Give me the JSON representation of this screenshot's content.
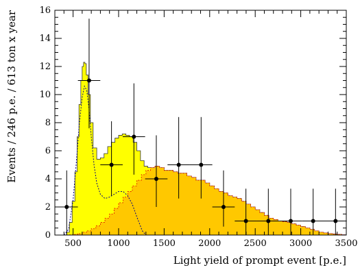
{
  "chart_data": {
    "type": "histogram",
    "title": "",
    "xlabel": "Light yield of prompt event [p.e.]",
    "ylabel": "Events / 246 p.e. / 613 ton x year",
    "xlim": [
      300,
      3500
    ],
    "ylim": [
      0,
      16
    ],
    "x_tick_labels": [
      "500",
      "1000",
      "1500",
      "2000",
      "2500",
      "3000",
      "3500"
    ],
    "y_tick_labels": [
      "0",
      "2",
      "4",
      "6",
      "8",
      "10",
      "12",
      "14",
      "16"
    ],
    "x_ticks": [
      500,
      1000,
      1500,
      2000,
      2500,
      3000,
      3500
    ],
    "y_ticks": [
      0,
      2,
      4,
      6,
      8,
      10,
      12,
      14,
      16
    ],
    "grid": false,
    "series": [
      {
        "kind": "total-fill",
        "color": "#ffff00",
        "points": [
          [
            400,
            0
          ],
          [
            430,
            0.2
          ],
          [
            460,
            0.9
          ],
          [
            490,
            2.4
          ],
          [
            520,
            4.5
          ],
          [
            545,
            7.0
          ],
          [
            565,
            9.3
          ],
          [
            585,
            11.0
          ],
          [
            600,
            12.0
          ],
          [
            615,
            12.3
          ],
          [
            630,
            12.2
          ],
          [
            645,
            11.4
          ],
          [
            665,
            10.0
          ],
          [
            690,
            8.0
          ],
          [
            720,
            6.2
          ],
          [
            760,
            5.4
          ],
          [
            800,
            5.5
          ],
          [
            840,
            5.8
          ],
          [
            880,
            6.3
          ],
          [
            920,
            6.6
          ],
          [
            960,
            6.9
          ],
          [
            1000,
            7.1
          ],
          [
            1040,
            7.2
          ],
          [
            1080,
            7.1
          ],
          [
            1120,
            7.0
          ],
          [
            1160,
            6.6
          ],
          [
            1200,
            6.0
          ],
          [
            1240,
            5.3
          ],
          [
            1280,
            4.9
          ],
          [
            1320,
            4.8
          ],
          [
            1360,
            4.8
          ],
          [
            1400,
            4.9
          ],
          [
            1450,
            4.8
          ],
          [
            1500,
            4.6
          ],
          [
            1550,
            4.6
          ],
          [
            1600,
            4.5
          ],
          [
            1650,
            4.4
          ],
          [
            1700,
            4.4
          ],
          [
            1750,
            4.2
          ],
          [
            1800,
            4.1
          ],
          [
            1850,
            3.9
          ],
          [
            1900,
            3.9
          ],
          [
            1950,
            3.7
          ],
          [
            2000,
            3.5
          ],
          [
            2050,
            3.3
          ],
          [
            2100,
            3.1
          ],
          [
            2150,
            3.0
          ],
          [
            2200,
            2.8
          ],
          [
            2250,
            2.7
          ],
          [
            2300,
            2.6
          ],
          [
            2350,
            2.4
          ],
          [
            2400,
            2.2
          ],
          [
            2450,
            2.0
          ],
          [
            2500,
            1.8
          ],
          [
            2550,
            1.6
          ],
          [
            2600,
            1.4
          ],
          [
            2650,
            1.2
          ],
          [
            2700,
            1.1
          ],
          [
            2750,
            1.0
          ],
          [
            2800,
            0.95
          ],
          [
            2850,
            0.9
          ],
          [
            2900,
            0.8
          ],
          [
            2950,
            0.7
          ],
          [
            3000,
            0.6
          ],
          [
            3050,
            0.5
          ],
          [
            3100,
            0.4
          ],
          [
            3150,
            0.3
          ],
          [
            3200,
            0.2
          ],
          [
            3250,
            0.15
          ],
          [
            3300,
            0.1
          ],
          [
            3350,
            0.07
          ],
          [
            3400,
            0.05
          ],
          [
            3450,
            0.02
          ],
          [
            3500,
            0
          ]
        ]
      },
      {
        "kind": "component-fill",
        "color": "#ffc800",
        "points": [
          [
            400,
            0
          ],
          [
            450,
            0.02
          ],
          [
            500,
            0.05
          ],
          [
            550,
            0.1
          ],
          [
            600,
            0.2
          ],
          [
            650,
            0.3
          ],
          [
            700,
            0.45
          ],
          [
            750,
            0.65
          ],
          [
            800,
            0.9
          ],
          [
            850,
            1.2
          ],
          [
            900,
            1.5
          ],
          [
            950,
            1.9
          ],
          [
            1000,
            2.3
          ],
          [
            1050,
            2.7
          ],
          [
            1100,
            3.1
          ],
          [
            1150,
            3.5
          ],
          [
            1200,
            3.9
          ],
          [
            1250,
            4.3
          ],
          [
            1300,
            4.6
          ],
          [
            1350,
            4.8
          ],
          [
            1400,
            4.9
          ],
          [
            1450,
            4.8
          ],
          [
            1500,
            4.6
          ],
          [
            1550,
            4.6
          ],
          [
            1600,
            4.5
          ],
          [
            1650,
            4.4
          ],
          [
            1700,
            4.4
          ],
          [
            1750,
            4.2
          ],
          [
            1800,
            4.1
          ],
          [
            1850,
            3.9
          ],
          [
            1900,
            3.9
          ],
          [
            1950,
            3.7
          ],
          [
            2000,
            3.5
          ],
          [
            2050,
            3.3
          ],
          [
            2100,
            3.1
          ],
          [
            2150,
            3.0
          ],
          [
            2200,
            2.8
          ],
          [
            2250,
            2.7
          ],
          [
            2300,
            2.6
          ],
          [
            2350,
            2.4
          ],
          [
            2400,
            2.2
          ],
          [
            2450,
            2.0
          ],
          [
            2500,
            1.8
          ],
          [
            2550,
            1.6
          ],
          [
            2600,
            1.4
          ],
          [
            2650,
            1.2
          ],
          [
            2700,
            1.1
          ],
          [
            2750,
            1.0
          ],
          [
            2800,
            0.95
          ],
          [
            2850,
            0.9
          ],
          [
            2900,
            0.8
          ],
          [
            2950,
            0.7
          ],
          [
            3000,
            0.6
          ],
          [
            3050,
            0.5
          ],
          [
            3100,
            0.4
          ],
          [
            3150,
            0.3
          ],
          [
            3200,
            0.2
          ],
          [
            3250,
            0.15
          ],
          [
            3300,
            0.1
          ],
          [
            3350,
            0.07
          ],
          [
            3400,
            0.05
          ],
          [
            3450,
            0.02
          ],
          [
            3500,
            0
          ]
        ]
      },
      {
        "kind": "dashed-line",
        "color": "#000080",
        "points": [
          [
            400,
            0
          ],
          [
            450,
            0.4
          ],
          [
            500,
            2.5
          ],
          [
            540,
            5.5
          ],
          [
            570,
            8.0
          ],
          [
            600,
            9.8
          ],
          [
            625,
            10.6
          ],
          [
            650,
            10.3
          ],
          [
            675,
            9.0
          ],
          [
            700,
            7.0
          ],
          [
            730,
            5.0
          ],
          [
            760,
            3.7
          ],
          [
            800,
            2.9
          ],
          [
            850,
            2.6
          ],
          [
            900,
            2.7
          ],
          [
            950,
            2.9
          ],
          [
            1000,
            3.1
          ],
          [
            1050,
            3.1
          ],
          [
            1100,
            2.8
          ],
          [
            1150,
            2.2
          ],
          [
            1200,
            1.3
          ],
          [
            1230,
            0.8
          ],
          [
            1260,
            0.3
          ],
          [
            1300,
            0
          ]
        ]
      }
    ],
    "data_points": [
      {
        "x": 430,
        "y": 2,
        "x_err": 123,
        "y_low": 0,
        "y_high": 4.6
      },
      {
        "x": 676,
        "y": 11,
        "x_err": 123,
        "y_low": 7.6,
        "y_high": 15.4
      },
      {
        "x": 922,
        "y": 5,
        "x_err": 123,
        "y_low": 2.8,
        "y_high": 8.1
      },
      {
        "x": 1168,
        "y": 7,
        "x_err": 123,
        "y_low": 4.3,
        "y_high": 10.8
      },
      {
        "x": 1414,
        "y": 4,
        "x_err": 123,
        "y_low": 2.0,
        "y_high": 7.1
      },
      {
        "x": 1660,
        "y": 5,
        "x_err": 123,
        "y_low": 2.6,
        "y_high": 8.4
      },
      {
        "x": 1906,
        "y": 5,
        "x_err": 123,
        "y_low": 2.6,
        "y_high": 8.4
      },
      {
        "x": 2152,
        "y": 2,
        "x_err": 123,
        "y_low": 0.6,
        "y_high": 4.6
      },
      {
        "x": 2398,
        "y": 1,
        "x_err": 123,
        "y_low": 0,
        "y_high": 3.3
      },
      {
        "x": 2644,
        "y": 1,
        "x_err": 123,
        "y_low": 0,
        "y_high": 3.3
      },
      {
        "x": 2890,
        "y": 1,
        "x_err": 123,
        "y_low": 0,
        "y_high": 3.3
      },
      {
        "x": 3136,
        "y": 1,
        "x_err": 123,
        "y_low": 0,
        "y_high": 3.3
      },
      {
        "x": 3382,
        "y": 1,
        "x_err": 123,
        "y_low": 0,
        "y_high": 3.3
      }
    ]
  }
}
